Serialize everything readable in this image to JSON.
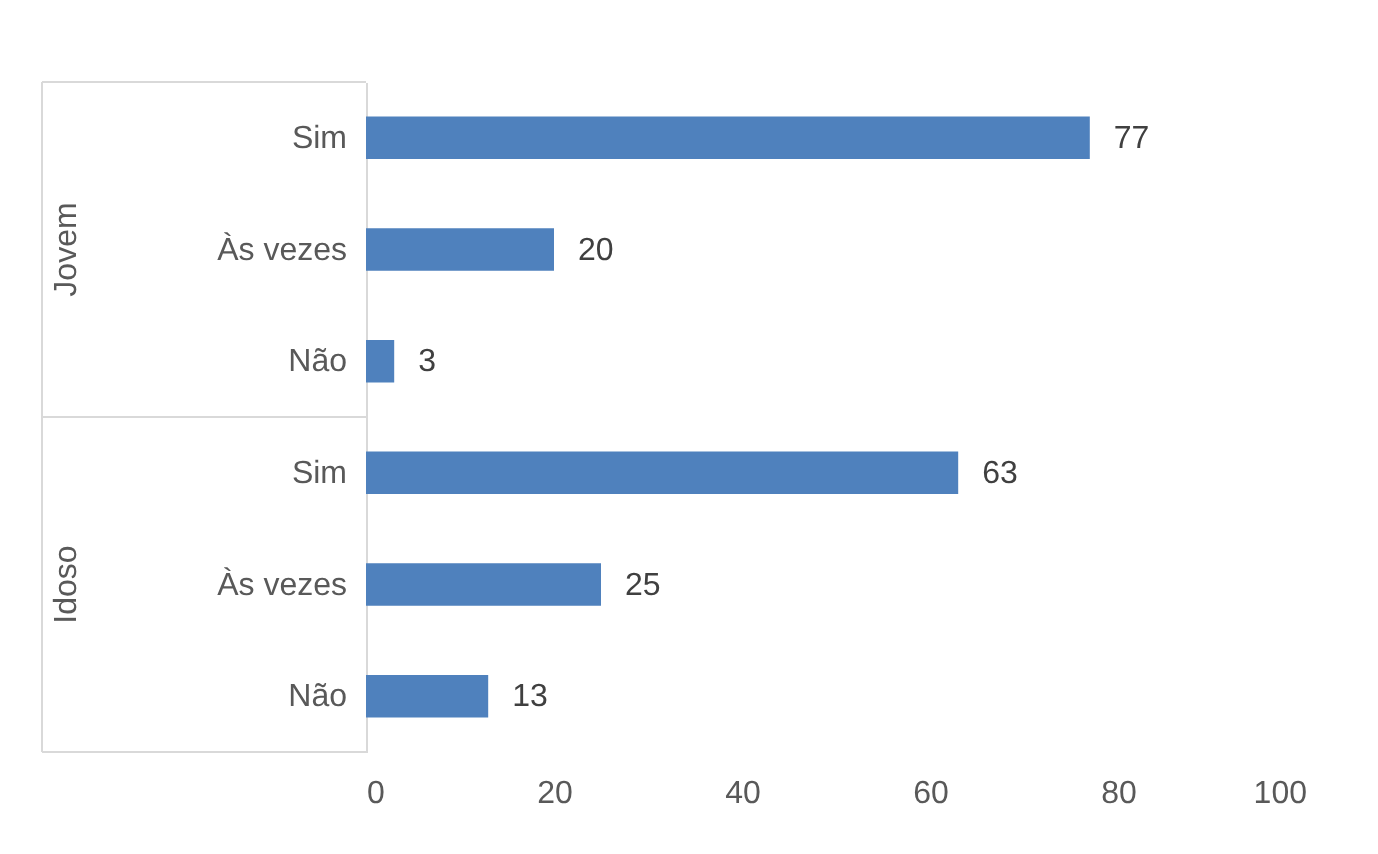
{
  "chart_data": {
    "type": "bar",
    "orientation": "horizontal",
    "categories": [
      "Sim",
      "Às vezes",
      "Não",
      "Sim",
      "Às vezes",
      "Não"
    ],
    "values": [
      77,
      20,
      3,
      63,
      25,
      13
    ],
    "color": "#4f81bd",
    "xlim": [
      0,
      100
    ],
    "xticks": [
      0,
      20,
      40,
      60,
      80,
      100
    ],
    "annotations": [
      "Jovem",
      "Idoso"
    ],
    "data_labels": true,
    "grid": false
  }
}
